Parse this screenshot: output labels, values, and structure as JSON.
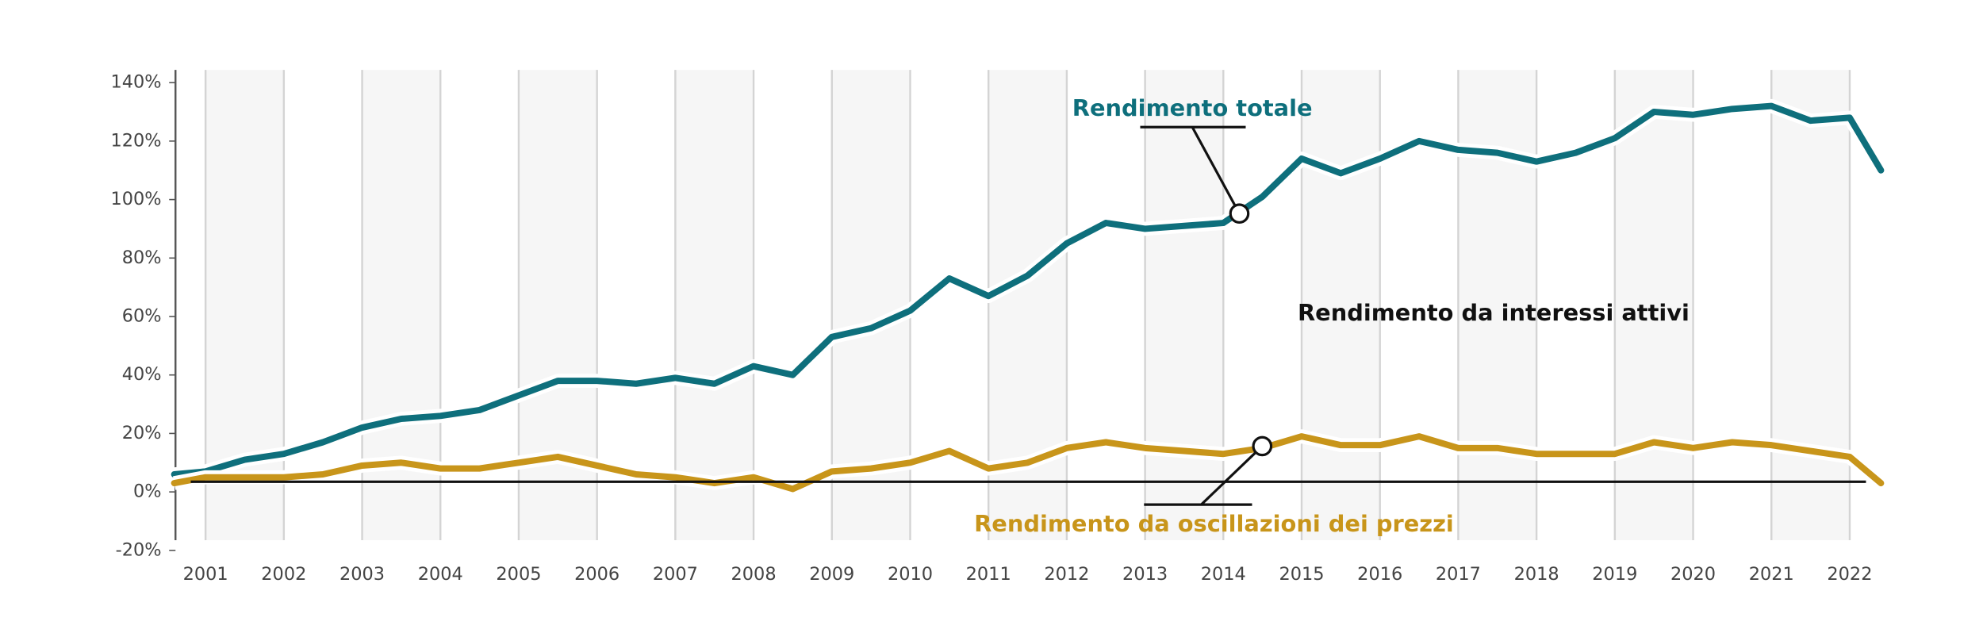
{
  "chart_data": {
    "type": "line",
    "x": [
      2000.6,
      2001.0,
      2001.5,
      2002.0,
      2002.5,
      2003.0,
      2003.5,
      2004.0,
      2004.5,
      2005.0,
      2005.5,
      2006.0,
      2006.5,
      2007.0,
      2007.5,
      2008.0,
      2008.5,
      2009.0,
      2009.5,
      2010.0,
      2010.5,
      2011.0,
      2011.5,
      2012.0,
      2012.5,
      2013.0,
      2013.5,
      2014.0,
      2014.5,
      2015.0,
      2015.5,
      2016.0,
      2016.5,
      2017.0,
      2017.5,
      2018.0,
      2018.5,
      2019.0,
      2019.5,
      2020.0,
      2020.5,
      2021.0,
      2021.5,
      2022.0,
      2022.4
    ],
    "series": [
      {
        "name": "Rendimento totale",
        "color": "#0e6f7c",
        "values": [
          6,
          7,
          11,
          13,
          17,
          22,
          25,
          26,
          28,
          33,
          38,
          38,
          37,
          39,
          37,
          43,
          40,
          53,
          56,
          62,
          73,
          67,
          74,
          85,
          92,
          90,
          91,
          92,
          101,
          114,
          109,
          114,
          120,
          117,
          116,
          113,
          116,
          121,
          130,
          129,
          131,
          132,
          127,
          128,
          110
        ]
      },
      {
        "name": "Rendimento da oscillazioni dei prezzi",
        "color": "#c8951a",
        "values": [
          3,
          5,
          5,
          5,
          6,
          9,
          10,
          8,
          8,
          10,
          12,
          9,
          6,
          5,
          3,
          5,
          1,
          7,
          8,
          10,
          14,
          8,
          10,
          15,
          17,
          15,
          14,
          13,
          15,
          19,
          16,
          16,
          19,
          15,
          15,
          13,
          13,
          13,
          17,
          15,
          17,
          16,
          14,
          12,
          3
        ]
      }
    ],
    "annotations": [
      "Rendimento da interessi attivi"
    ],
    "xlim": [
      2000.6,
      2022.5
    ],
    "xticks": [
      2001,
      2002,
      2003,
      2004,
      2005,
      2006,
      2007,
      2008,
      2009,
      2010,
      2011,
      2012,
      2013,
      2014,
      2015,
      2016,
      2017,
      2018,
      2019,
      2020,
      2021,
      2022
    ],
    "ylim": [
      -20,
      140
    ],
    "yticks": [
      {
        "value": -20,
        "label": "-20%"
      },
      {
        "value": 0,
        "label": "0%"
      },
      {
        "value": 20,
        "label": "20%"
      },
      {
        "value": 40,
        "label": "40%"
      },
      {
        "value": 60,
        "label": "60%"
      },
      {
        "value": 80,
        "label": "80%"
      },
      {
        "value": 100,
        "label": "100%"
      },
      {
        "value": 120,
        "label": "120%"
      },
      {
        "value": 140,
        "label": "140%"
      }
    ],
    "grid": true
  }
}
